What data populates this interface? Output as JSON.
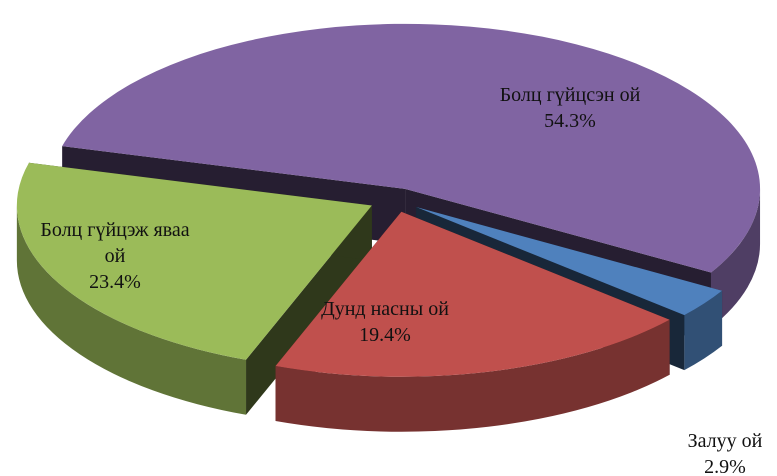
{
  "chart_data": {
    "type": "pie3d",
    "categories": [
      "Болц гүйцсэн ой",
      "Залуу ой",
      "Дунд насны ой",
      "Болц гүйцэж яваа ой"
    ],
    "values": [
      54.3,
      2.9,
      19.4,
      23.4
    ],
    "value_labels": [
      "54.3%",
      "2.9%",
      "19.4%",
      "23.4%"
    ],
    "colors": [
      "#8064a2",
      "#4f81bd",
      "#c0504d",
      "#9bbb59"
    ],
    "exploded": true
  }
}
